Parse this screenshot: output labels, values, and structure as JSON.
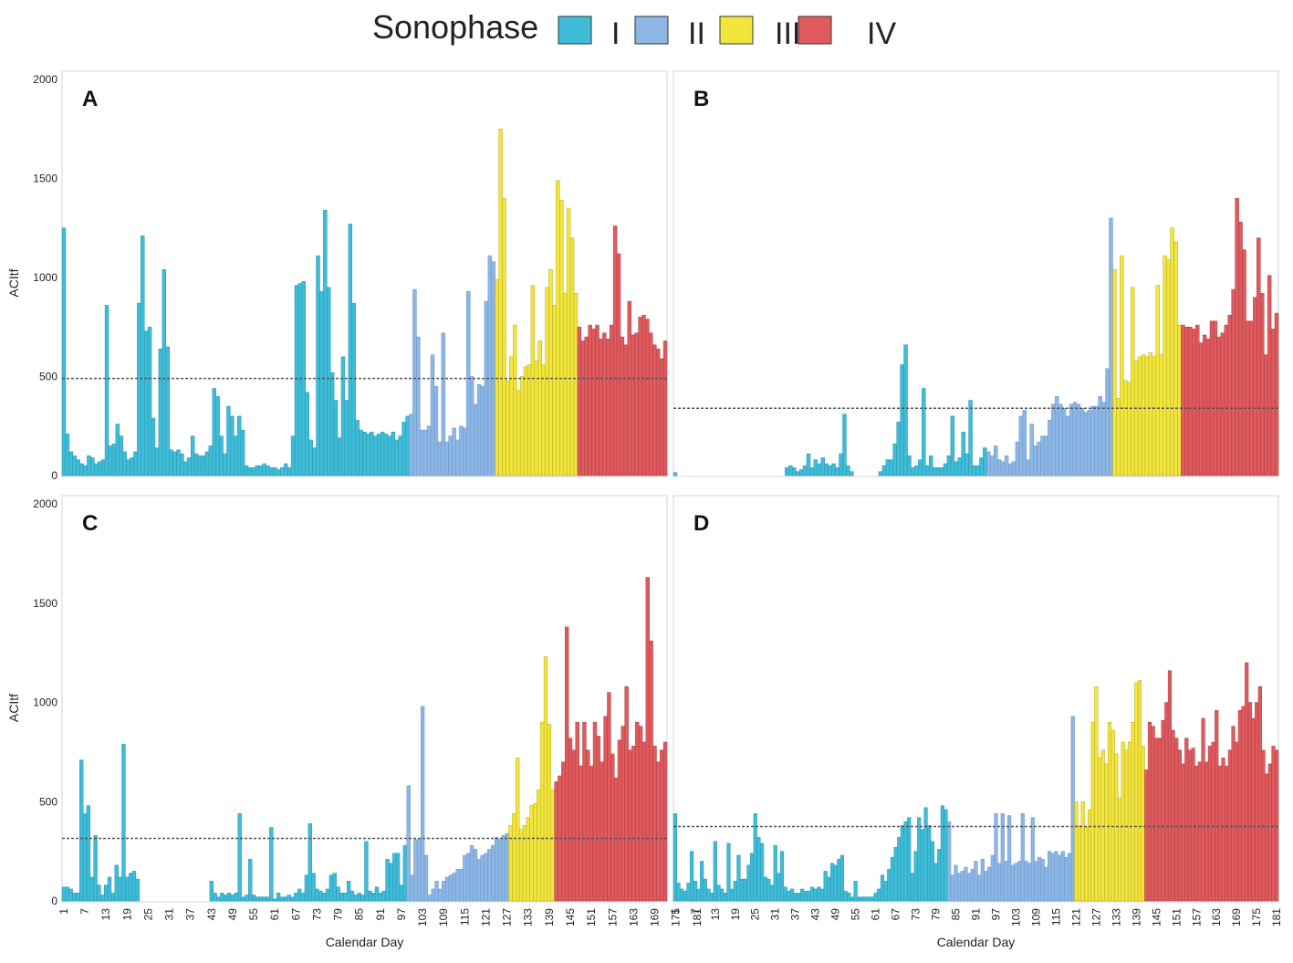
{
  "legend": {
    "title": "Sonophase",
    "items": [
      {
        "label": "I",
        "color": "#3ebcd8"
      },
      {
        "label": "II",
        "color": "#8cb6e4"
      },
      {
        "label": "III",
        "color": "#f2e63c"
      },
      {
        "label": "IV",
        "color": "#e05a5e"
      }
    ]
  },
  "chart_data": [
    {
      "type": "bar",
      "panel": "A",
      "xlabel": "",
      "ylabel": "ACItf",
      "ylim": [
        0,
        2000
      ],
      "yticks": [
        0,
        500,
        1000,
        1500,
        2000
      ],
      "xlim": [
        1,
        181
      ],
      "xticks": [],
      "threshold": 490,
      "phases": [
        {
          "phase": "I",
          "start": 1,
          "end": 97
        },
        {
          "phase": "II",
          "start": 98,
          "end": 121
        },
        {
          "phase": "III",
          "start": 122,
          "end": 144
        },
        {
          "phase": "IV",
          "start": 145,
          "end": 181
        }
      ],
      "values": [
        1250,
        210,
        120,
        100,
        80,
        60,
        50,
        100,
        90,
        60,
        70,
        80,
        860,
        150,
        160,
        260,
        200,
        120,
        80,
        90,
        120,
        870,
        1210,
        730,
        750,
        290,
        140,
        640,
        1040,
        650,
        130,
        120,
        130,
        110,
        70,
        90,
        200,
        110,
        100,
        100,
        120,
        150,
        440,
        400,
        200,
        110,
        350,
        300,
        200,
        300,
        230,
        50,
        40,
        40,
        50,
        50,
        60,
        50,
        40,
        40,
        30,
        40,
        60,
        40,
        200,
        960,
        970,
        980,
        420,
        180,
        140,
        1110,
        930,
        1340,
        950,
        520,
        380,
        190,
        600,
        380,
        1270,
        870,
        280,
        230,
        220,
        210,
        220,
        200,
        210,
        220,
        210,
        200,
        220,
        180,
        200,
        270,
        300,
        310,
        940,
        700,
        230,
        230,
        250,
        610,
        450,
        170,
        720,
        170,
        200,
        240,
        180,
        250,
        240,
        930,
        500,
        360,
        460,
        450,
        880,
        1110,
        1080,
        990,
        1750,
        1400,
        480,
        600,
        760,
        430,
        500,
        550,
        560,
        960,
        580,
        680,
        560,
        950,
        1040,
        860,
        1490,
        1390,
        920,
        1350,
        1200,
        920,
        750,
        680,
        700,
        760,
        740,
        760,
        690,
        720,
        690,
        760,
        1260,
        1120,
        700,
        660,
        880,
        710,
        720,
        800,
        810,
        790,
        720,
        660,
        640,
        590,
        680
      ]
    },
    {
      "type": "bar",
      "panel": "B",
      "xlabel": "",
      "ylabel": "",
      "ylim": [
        0,
        2000
      ],
      "yticks": [],
      "xlim": [
        1,
        181
      ],
      "xticks": [],
      "threshold": 340,
      "phases": [
        {
          "phase": "I",
          "start": 1,
          "end": 87
        },
        {
          "phase": "II",
          "start": 88,
          "end": 122
        },
        {
          "phase": "III",
          "start": 123,
          "end": 141
        },
        {
          "phase": "IV",
          "start": 142,
          "end": 181
        }
      ],
      "values": [
        15,
        0,
        0,
        0,
        0,
        0,
        0,
        0,
        0,
        0,
        0,
        0,
        0,
        0,
        0,
        0,
        0,
        0,
        0,
        0,
        0,
        0,
        0,
        0,
        0,
        0,
        0,
        0,
        0,
        0,
        0,
        40,
        50,
        40,
        20,
        30,
        50,
        110,
        40,
        80,
        60,
        90,
        60,
        50,
        60,
        40,
        110,
        310,
        50,
        20,
        0,
        0,
        0,
        0,
        0,
        0,
        0,
        20,
        50,
        80,
        80,
        160,
        270,
        560,
        660,
        100,
        40,
        50,
        80,
        440,
        50,
        100,
        40,
        40,
        40,
        60,
        100,
        300,
        70,
        90,
        220,
        110,
        380,
        50,
        50,
        90,
        140,
        120,
        100,
        150,
        80,
        70,
        100,
        60,
        70,
        170,
        300,
        330,
        80,
        260,
        150,
        170,
        200,
        200,
        280,
        360,
        400,
        360,
        340,
        300,
        360,
        370,
        360,
        340,
        320,
        330,
        350,
        350,
        400,
        370,
        540,
        1300,
        1040,
        390,
        1110,
        480,
        470,
        950,
        580,
        600,
        610,
        600,
        620,
        600,
        960,
        610,
        1110,
        1090,
        1250,
        1180,
        760,
        760,
        750,
        750,
        740,
        760,
        670,
        710,
        690,
        780,
        780,
        700,
        720,
        760,
        810,
        940,
        1400,
        1280,
        1140,
        780,
        780,
        900,
        1200,
        920,
        610,
        1010,
        740,
        820
      ]
    },
    {
      "type": "bar",
      "panel": "C",
      "xlabel": "Calendar Day",
      "ylabel": "ACItf",
      "ylim": [
        0,
        2000
      ],
      "yticks": [
        0,
        500,
        1000,
        1500,
        2000
      ],
      "xlim": [
        1,
        181
      ],
      "xticks": [
        1,
        7,
        13,
        19,
        25,
        31,
        37,
        43,
        49,
        55,
        61,
        67,
        73,
        79,
        85,
        91,
        97,
        103,
        109,
        115,
        121,
        127,
        133,
        139,
        145,
        151,
        157,
        163,
        169,
        175,
        181
      ],
      "threshold": 315,
      "phases": [
        {
          "phase": "I",
          "start": 1,
          "end": 98
        },
        {
          "phase": "II",
          "start": 99,
          "end": 127
        },
        {
          "phase": "III",
          "start": 128,
          "end": 140
        },
        {
          "phase": "IV",
          "start": 141,
          "end": 181
        }
      ],
      "values": [
        70,
        70,
        60,
        40,
        40,
        710,
        440,
        480,
        120,
        330,
        80,
        30,
        80,
        120,
        40,
        180,
        120,
        790,
        120,
        140,
        150,
        110,
        0,
        0,
        0,
        0,
        0,
        0,
        0,
        0,
        0,
        0,
        0,
        0,
        0,
        0,
        0,
        0,
        0,
        0,
        0,
        0,
        100,
        40,
        20,
        40,
        30,
        40,
        30,
        40,
        440,
        20,
        30,
        210,
        30,
        20,
        20,
        20,
        20,
        370,
        10,
        40,
        20,
        20,
        30,
        20,
        40,
        60,
        40,
        130,
        390,
        140,
        60,
        50,
        40,
        60,
        130,
        140,
        70,
        40,
        40,
        100,
        50,
        30,
        40,
        30,
        300,
        50,
        40,
        70,
        40,
        50,
        210,
        190,
        240,
        240,
        80,
        280,
        580,
        130,
        310,
        310,
        980,
        230,
        30,
        60,
        100,
        60,
        100,
        120,
        130,
        140,
        160,
        160,
        230,
        240,
        280,
        260,
        210,
        230,
        240,
        260,
        280,
        320,
        310,
        330,
        340,
        380,
        440,
        720,
        360,
        380,
        420,
        480,
        490,
        560,
        900,
        1230,
        890,
        560,
        600,
        630,
        700,
        1380,
        820,
        760,
        900,
        680,
        900,
        760,
        680,
        900,
        830,
        700,
        930,
        1050,
        740,
        620,
        810,
        880,
        1080,
        760,
        780,
        900,
        880,
        800,
        1630,
        1310,
        780,
        700,
        760,
        800
      ]
    },
    {
      "type": "bar",
      "panel": "D",
      "xlabel": "Calendar Day",
      "ylabel": "",
      "ylim": [
        0,
        2000
      ],
      "yticks": [],
      "xlim": [
        1,
        181
      ],
      "xticks": [
        1,
        7,
        13,
        19,
        25,
        31,
        37,
        43,
        49,
        55,
        61,
        67,
        73,
        79,
        85,
        91,
        97,
        103,
        109,
        115,
        121,
        127,
        133,
        139,
        145,
        151,
        157,
        163,
        169,
        175,
        181
      ],
      "threshold": 375,
      "phases": [
        {
          "phase": "I",
          "start": 1,
          "end": 82
        },
        {
          "phase": "II",
          "start": 83,
          "end": 120
        },
        {
          "phase": "III",
          "start": 121,
          "end": 141
        },
        {
          "phase": "IV",
          "start": 142,
          "end": 181
        }
      ],
      "values": [
        440,
        90,
        60,
        50,
        90,
        250,
        100,
        60,
        200,
        110,
        60,
        40,
        300,
        80,
        60,
        40,
        290,
        60,
        100,
        230,
        110,
        110,
        180,
        240,
        440,
        320,
        290,
        120,
        110,
        80,
        280,
        140,
        250,
        70,
        50,
        60,
        40,
        40,
        60,
        50,
        50,
        70,
        60,
        70,
        60,
        150,
        120,
        190,
        180,
        210,
        230,
        50,
        40,
        20,
        100,
        20,
        20,
        20,
        20,
        20,
        40,
        60,
        130,
        100,
        160,
        220,
        270,
        320,
        380,
        400,
        420,
        140,
        250,
        420,
        360,
        470,
        380,
        300,
        190,
        260,
        480,
        460,
        400,
        130,
        180,
        140,
        150,
        170,
        140,
        160,
        200,
        130,
        210,
        150,
        170,
        230,
        440,
        190,
        440,
        200,
        430,
        180,
        190,
        200,
        440,
        200,
        190,
        420,
        200,
        220,
        210,
        170,
        250,
        240,
        250,
        230,
        250,
        220,
        240,
        930,
        500,
        380,
        500,
        370,
        460,
        900,
        1080,
        720,
        760,
        690,
        900,
        860,
        740,
        520,
        800,
        760,
        800,
        900,
        1100,
        1110,
        780,
        660,
        900,
        880,
        820,
        820,
        910,
        1000,
        1160,
        860,
        820,
        760,
        690,
        820,
        760,
        770,
        680,
        700,
        920,
        700,
        780,
        800,
        960,
        680,
        720,
        680,
        760,
        880,
        800,
        960,
        980,
        1200,
        1000,
        920,
        1000,
        1080,
        760,
        640,
        690,
        780,
        760
      ]
    }
  ]
}
